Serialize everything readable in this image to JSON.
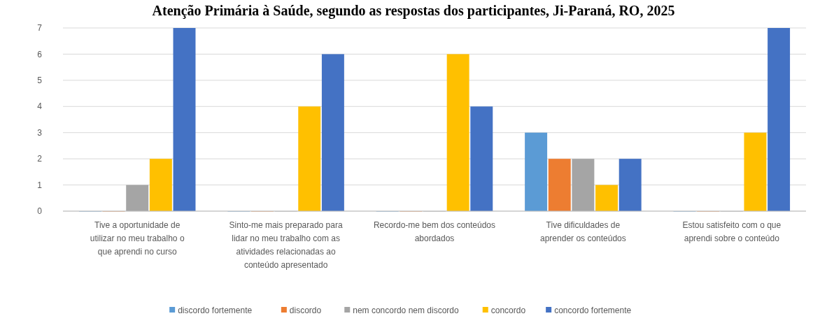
{
  "chart_data": {
    "type": "bar",
    "title": "Atenção Primária à Saúde, segundo as respostas dos participantes, Ji-Paraná, RO, 2025",
    "categories": [
      "Tive a oportunidade de utilizar no meu trabalho o que aprendi no curso",
      "Sinto-me mais preparado para lidar no meu trabalho com as atividades relacionadas ao conteúdo apresentado",
      "Recordo-me bem dos conteúdos abordados",
      "Tive dificuldades de aprender os conteúdos",
      "Estou satisfeito com o que aprendi sobre o conteúdo"
    ],
    "series": [
      {
        "name": "discordo fortemente",
        "color": "#5b9bd5",
        "values": [
          0,
          0,
          0,
          3,
          0
        ]
      },
      {
        "name": "discordo",
        "color": "#ed7d31",
        "values": [
          0,
          0,
          0,
          2,
          0
        ]
      },
      {
        "name": "nem concordo nem discordo",
        "color": "#a5a5a5",
        "values": [
          1,
          0,
          0,
          2,
          0
        ]
      },
      {
        "name": "concordo",
        "color": "#ffc000",
        "values": [
          2,
          4,
          6,
          1,
          3
        ]
      },
      {
        "name": "concordo fortemente",
        "color": "#4472c4",
        "values": [
          7,
          6,
          4,
          2,
          7
        ]
      }
    ],
    "ylim": [
      0,
      7
    ],
    "yticks": [
      0,
      1,
      2,
      3,
      4,
      5,
      6,
      7
    ],
    "grid": "y",
    "legend": "bottom"
  }
}
